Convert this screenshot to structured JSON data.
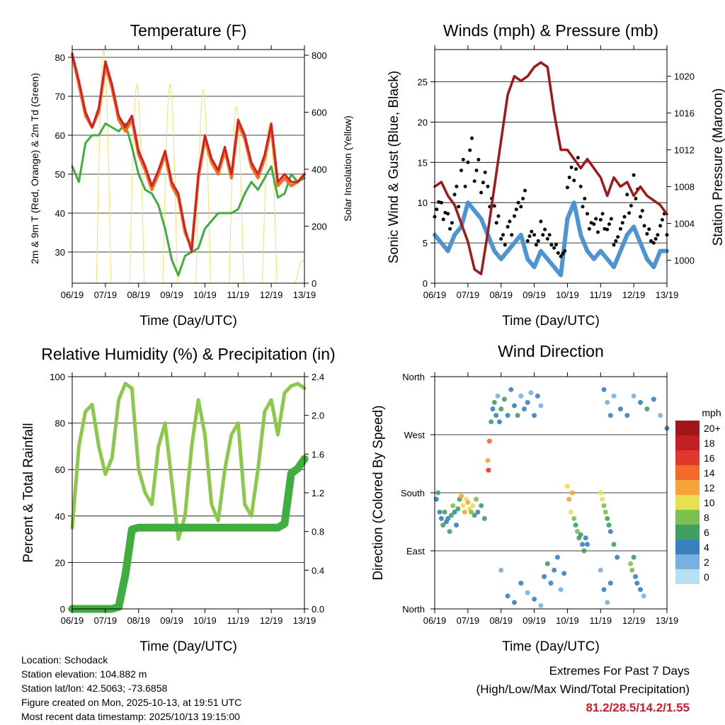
{
  "colors": {
    "temp_red": "#d42020",
    "temp_orange": "#f07020",
    "dew_green": "#3fae3f",
    "solar_yellow": "#f5de6a",
    "gust_black": "#000000",
    "wind_blue": "#4d94d0",
    "pressure_maroon": "#a01818",
    "rh_light_green": "#8cc84b",
    "rain_green": "#3fae3f",
    "extreme_red": "#c8202c"
  },
  "x_ticks": [
    "06/19",
    "07/19",
    "08/19",
    "09/19",
    "10/19",
    "11/19",
    "12/19",
    "13/19"
  ],
  "chart_data": [
    {
      "id": "temperature",
      "type": "line",
      "title": "Temperature (F)",
      "xlabel": "Time (Day/UTC)",
      "ylabel": "2m & 9m T (Red, Orange) & 2m Td (Green)",
      "ylabel_right": "Solar Insolation (Yellow)",
      "ylim": [
        22,
        82
      ],
      "yticks": [
        30,
        40,
        50,
        60,
        70,
        80
      ],
      "ylim_right": [
        0,
        820
      ],
      "yticks_right": [
        0,
        200,
        400,
        600,
        800
      ],
      "x": [
        6,
        6.2,
        6.4,
        6.6,
        6.8,
        7,
        7.2,
        7.4,
        7.6,
        7.8,
        8,
        8.2,
        8.4,
        8.6,
        8.8,
        9,
        9.2,
        9.4,
        9.6,
        9.8,
        10,
        10.2,
        10.4,
        10.6,
        10.8,
        11,
        11.2,
        11.4,
        11.6,
        11.8,
        12,
        12.2,
        12.4,
        12.6,
        12.8,
        13
      ],
      "series": [
        {
          "name": "2m T",
          "color": "#d42020",
          "values": [
            81,
            74,
            66,
            62,
            67,
            79,
            73,
            65,
            62,
            65,
            56,
            52,
            47,
            51,
            56,
            48,
            45,
            36,
            30,
            50,
            60,
            54,
            51,
            57,
            50,
            64,
            60,
            53,
            50,
            55,
            63,
            48,
            50,
            48,
            48,
            50
          ]
        },
        {
          "name": "9m T",
          "color": "#f07020",
          "values": [
            80.5,
            73,
            65,
            62,
            66,
            78,
            72,
            64,
            61,
            64,
            55,
            51,
            46,
            50,
            55,
            47,
            44,
            35,
            31,
            49,
            59,
            53,
            50,
            56,
            49,
            63,
            59,
            52,
            49,
            54,
            62,
            47,
            49,
            47,
            48,
            50
          ]
        },
        {
          "name": "2m Td",
          "color": "#3fae3f",
          "values": [
            52,
            48,
            58,
            60,
            60,
            63,
            62,
            61,
            63,
            57,
            50,
            46,
            45,
            42,
            36,
            28,
            24,
            29,
            30,
            31,
            36,
            38,
            40,
            40,
            40,
            41,
            45,
            48,
            46,
            49,
            52,
            44,
            45,
            50,
            48,
            49
          ]
        },
        {
          "name": "Solar Insolation",
          "color": "#f5de6a",
          "axis": "right",
          "peaks": [
            [
              6.95,
              820
            ],
            [
              7.95,
              700
            ],
            [
              8.95,
              700
            ],
            [
              9.95,
              680
            ],
            [
              10.95,
              620
            ],
            [
              11.95,
              560
            ],
            [
              12.95,
              80
            ]
          ]
        }
      ]
    },
    {
      "id": "winds",
      "type": "line",
      "title": "Winds (mph) & Pressure (mb)",
      "xlabel": "Time (Day/UTC)",
      "ylabel": "Sonic Wind & Gust (Blue, Black)",
      "ylabel_right": "Station Pressure (Maroon)",
      "ylim": [
        0,
        29
      ],
      "yticks": [
        0,
        5,
        10,
        15,
        20,
        25
      ],
      "ylim_right": [
        997.5,
        1022.9
      ],
      "yticks_right": [
        1000,
        1004,
        1008,
        1012,
        1016,
        1020
      ],
      "x": [
        6,
        6.2,
        6.4,
        6.6,
        6.8,
        7,
        7.2,
        7.4,
        7.6,
        7.8,
        8,
        8.2,
        8.4,
        8.6,
        8.8,
        9,
        9.2,
        9.4,
        9.6,
        9.8,
        10,
        10.2,
        10.4,
        10.6,
        10.8,
        11,
        11.2,
        11.4,
        11.6,
        11.8,
        12,
        12.2,
        12.4,
        12.6,
        12.8,
        13
      ],
      "series": [
        {
          "name": "Wind",
          "color": "#4d94d0",
          "values": [
            6,
            5,
            4,
            6,
            7,
            10,
            9,
            8,
            6,
            4,
            3,
            4,
            5,
            6,
            3,
            2,
            4,
            3,
            2,
            1,
            8,
            10,
            6,
            4,
            3,
            4,
            3,
            2,
            4,
            6,
            7,
            5,
            3,
            2,
            4,
            4
          ]
        },
        {
          "name": "Gust",
          "color": "#000000",
          "values": [
            11,
            10,
            9,
            12,
            16,
            18,
            16,
            15,
            12,
            10,
            6,
            8,
            10,
            12,
            7,
            6,
            8,
            6,
            5,
            4,
            15,
            17,
            12,
            9,
            8,
            9,
            8,
            6,
            9,
            11,
            14,
            9,
            7,
            6,
            9,
            8
          ]
        },
        {
          "name": "Station Pressure",
          "color": "#a01818",
          "axis": "right",
          "values": [
            1008,
            1008.5,
            1007,
            1006,
            1004,
            1002,
            999,
            998.5,
            1003,
            1008,
            1013,
            1018,
            1020,
            1019.5,
            1020,
            1021,
            1021.5,
            1021,
            1016,
            1012,
            1012,
            1011,
            1010,
            1011,
            1010,
            1009,
            1007,
            1009,
            1008,
            1008.5,
            1007,
            1008,
            1007,
            1006.5,
            1006,
            1005
          ]
        }
      ]
    },
    {
      "id": "humidity",
      "type": "line",
      "title": "Relative Humidity (%) & Precipitation (in)",
      "xlabel": "Time (Day/UTC)",
      "ylabel": "Percent & Total Rainfall",
      "ylim": [
        0,
        100
      ],
      "yticks": [
        0,
        20,
        40,
        60,
        80,
        100
      ],
      "ylim_right": [
        0,
        2.4
      ],
      "yticks_right": [
        "0.0",
        "0.4",
        "0.8",
        "1.2",
        "1.6",
        "2.0",
        "2.4"
      ],
      "x": [
        6,
        6.2,
        6.4,
        6.6,
        6.8,
        7,
        7.2,
        7.4,
        7.6,
        7.8,
        8,
        8.2,
        8.4,
        8.6,
        8.8,
        9,
        9.2,
        9.4,
        9.6,
        9.8,
        10,
        10.2,
        10.4,
        10.6,
        10.8,
        11,
        11.2,
        11.4,
        11.6,
        11.8,
        12,
        12.2,
        12.4,
        12.6,
        12.8,
        13
      ],
      "series": [
        {
          "name": "RH",
          "color": "#8cc84b",
          "values": [
            35,
            70,
            85,
            88,
            70,
            58,
            65,
            90,
            97,
            95,
            60,
            50,
            45,
            70,
            80,
            55,
            30,
            40,
            70,
            90,
            75,
            45,
            38,
            60,
            75,
            80,
            45,
            40,
            60,
            85,
            90,
            75,
            93,
            96,
            97,
            95
          ]
        },
        {
          "name": "Total Rainfall",
          "color": "#3fae3f",
          "axis": "right",
          "values": [
            0,
            0,
            0,
            0,
            0,
            0,
            0,
            0.02,
            0.35,
            0.82,
            0.84,
            0.84,
            0.84,
            0.84,
            0.84,
            0.84,
            0.84,
            0.84,
            0.84,
            0.84,
            0.84,
            0.84,
            0.84,
            0.84,
            0.84,
            0.84,
            0.84,
            0.84,
            0.84,
            0.84,
            0.84,
            0.84,
            0.88,
            1.4,
            1.45,
            1.55
          ]
        }
      ]
    },
    {
      "id": "direction",
      "type": "scatter",
      "title": "Wind Direction",
      "xlabel": "Time (Day/UTC)",
      "ylabel": "Direction (Colored By Speed)",
      "yticks": [
        "North",
        "East",
        "South",
        "West",
        "North"
      ],
      "ylim": [
        0,
        360
      ],
      "colorbar": {
        "title": "mph",
        "labels": [
          "20+",
          "18",
          "16",
          "14",
          "12",
          "10",
          "8",
          "6",
          "4",
          "2",
          "0"
        ],
        "colors": [
          "#a01818",
          "#c21f26",
          "#e0392b",
          "#f06a2a",
          "#f8a23a",
          "#e8e050",
          "#7cc050",
          "#40a060",
          "#3a80c0",
          "#78b0e0",
          "#b8e0f5"
        ]
      },
      "points": [
        [
          6.05,
          170,
          4
        ],
        [
          6.1,
          180,
          6
        ],
        [
          6.15,
          150,
          3
        ],
        [
          6.2,
          140,
          4
        ],
        [
          6.25,
          130,
          5
        ],
        [
          6.3,
          150,
          6
        ],
        [
          6.35,
          135,
          3
        ],
        [
          6.4,
          140,
          4
        ],
        [
          6.45,
          120,
          5
        ],
        [
          6.5,
          145,
          6
        ],
        [
          6.55,
          160,
          8
        ],
        [
          6.6,
          150,
          4
        ],
        [
          6.65,
          130,
          3
        ],
        [
          6.7,
          155,
          5
        ],
        [
          6.75,
          170,
          6
        ],
        [
          6.8,
          175,
          12
        ],
        [
          6.85,
          160,
          10
        ],
        [
          6.9,
          150,
          11
        ],
        [
          6.95,
          170,
          9
        ],
        [
          7.0,
          165,
          12
        ],
        [
          7.05,
          155,
          10
        ],
        [
          7.1,
          150,
          8
        ],
        [
          7.15,
          160,
          9
        ],
        [
          7.2,
          145,
          6
        ],
        [
          7.25,
          170,
          7
        ],
        [
          7.3,
          150,
          4
        ],
        [
          7.4,
          160,
          5
        ],
        [
          7.5,
          140,
          6
        ],
        [
          7.6,
          230,
          12
        ],
        [
          7.62,
          215,
          16
        ],
        [
          7.65,
          260,
          14
        ],
        [
          7.7,
          290,
          6
        ],
        [
          7.75,
          310,
          4
        ],
        [
          7.8,
          320,
          5
        ],
        [
          7.85,
          300,
          3
        ],
        [
          7.9,
          330,
          2
        ],
        [
          7.95,
          290,
          4
        ],
        [
          8.0,
          310,
          5
        ],
        [
          8.1,
          325,
          6
        ],
        [
          8.2,
          300,
          4
        ],
        [
          8.3,
          340,
          3
        ],
        [
          8.4,
          315,
          4
        ],
        [
          8.5,
          300,
          5
        ],
        [
          8.6,
          330,
          2
        ],
        [
          8.7,
          310,
          3
        ],
        [
          8.8,
          320,
          4
        ],
        [
          8.9,
          335,
          2
        ],
        [
          9.0,
          300,
          4
        ],
        [
          9.1,
          330,
          3
        ],
        [
          9.2,
          315,
          2
        ],
        [
          8.0,
          60,
          2
        ],
        [
          8.2,
          20,
          3
        ],
        [
          8.4,
          10,
          4
        ],
        [
          8.6,
          40,
          3
        ],
        [
          8.8,
          25,
          2
        ],
        [
          9.0,
          15,
          3
        ],
        [
          9.2,
          5,
          2
        ],
        [
          9.3,
          50,
          4
        ],
        [
          9.4,
          70,
          5
        ],
        [
          9.5,
          40,
          3
        ],
        [
          9.6,
          60,
          4
        ],
        [
          9.7,
          80,
          3
        ],
        [
          9.8,
          30,
          2
        ],
        [
          9.9,
          55,
          4
        ],
        [
          10.0,
          190,
          10
        ],
        [
          10.05,
          170,
          12
        ],
        [
          10.1,
          150,
          9
        ],
        [
          10.15,
          180,
          11
        ],
        [
          10.2,
          140,
          8
        ],
        [
          10.25,
          130,
          6
        ],
        [
          10.3,
          120,
          7
        ],
        [
          10.35,
          110,
          5
        ],
        [
          10.4,
          115,
          6
        ],
        [
          10.45,
          100,
          4
        ],
        [
          10.5,
          90,
          5
        ],
        [
          10.55,
          110,
          3
        ],
        [
          10.6,
          100,
          4
        ],
        [
          11.0,
          180,
          9
        ],
        [
          11.05,
          170,
          10
        ],
        [
          11.1,
          160,
          8
        ],
        [
          11.15,
          150,
          7
        ],
        [
          11.2,
          140,
          6
        ],
        [
          11.25,
          130,
          5
        ],
        [
          11.3,
          120,
          4
        ],
        [
          11.4,
          100,
          5
        ],
        [
          11.5,
          80,
          4
        ],
        [
          11.0,
          60,
          2
        ],
        [
          11.1,
          30,
          3
        ],
        [
          11.2,
          10,
          2
        ],
        [
          11.3,
          40,
          3
        ],
        [
          11.1,
          340,
          3
        ],
        [
          11.2,
          320,
          2
        ],
        [
          11.3,
          300,
          3
        ],
        [
          11.4,
          330,
          2
        ],
        [
          11.6,
          310,
          4
        ],
        [
          11.8,
          300,
          3
        ],
        [
          12.0,
          330,
          2
        ],
        [
          12.2,
          320,
          4
        ],
        [
          12.4,
          310,
          5
        ],
        [
          12.6,
          325,
          3
        ],
        [
          12.8,
          300,
          2
        ],
        [
          13.0,
          280,
          3
        ],
        [
          11.9,
          70,
          7
        ],
        [
          11.95,
          60,
          8
        ],
        [
          12.0,
          80,
          6
        ],
        [
          12.05,
          50,
          4
        ],
        [
          12.1,
          40,
          3
        ],
        [
          12.2,
          30,
          4
        ],
        [
          12.3,
          20,
          2
        ]
      ]
    }
  ],
  "info": {
    "location": "Location: Schodack",
    "elevation": "Station elevation: 104.882 m",
    "latlon": "Station lat/lon: 42.5063; -73.6858",
    "created": "Figure created on Mon, 2025-10-13, at 19:51 UTC",
    "recent": "Most recent data timestamp: 2025/10/13 19:15:00"
  },
  "extremes": {
    "title": "Extremes For Past 7 Days",
    "subtitle": "(High/Low/Max Wind/Total Precipitation)",
    "values": "81.2/28.5/14.2/1.55"
  }
}
